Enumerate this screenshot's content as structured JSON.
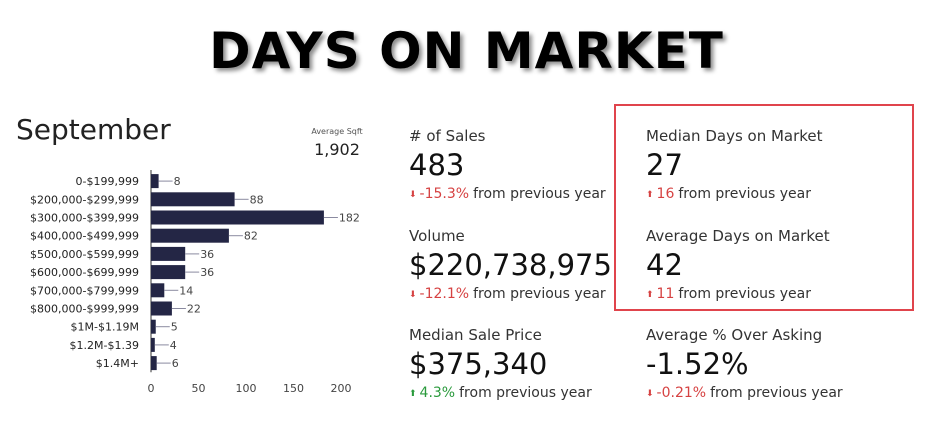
{
  "headline": "DAYS ON MARKET",
  "month": "September",
  "avg_sqft": {
    "label": "Average Sqft",
    "value": "1,902"
  },
  "colors": {
    "bar": "#242645",
    "down": "#d64242",
    "up": "#2a9a3c",
    "highlight": "#e0444c"
  },
  "metrics": {
    "sales": {
      "label": "# of Sales",
      "value": "483",
      "direction": "down",
      "change": "-15.3%",
      "suffix": "from previous year"
    },
    "volume": {
      "label": "Volume",
      "value": "$220,738,975",
      "direction": "down",
      "change": "-12.1%",
      "suffix": "from previous year"
    },
    "median_price": {
      "label": "Median Sale Price",
      "value": "$375,340",
      "direction": "up",
      "change": "4.3%",
      "suffix": "from previous year"
    },
    "median_dom": {
      "label": "Median Days on Market",
      "value": "27",
      "direction": "up",
      "change": "16",
      "suffix": "from previous year"
    },
    "average_dom": {
      "label": "Average Days on Market",
      "value": "42",
      "direction": "up",
      "change": "11",
      "suffix": "from previous year"
    },
    "over_asking": {
      "label": "Average % Over Asking",
      "value": "-1.52%",
      "direction": "down",
      "change": "-0.21%",
      "suffix": "from previous year"
    }
  },
  "chart_data": {
    "type": "bar",
    "orientation": "horizontal",
    "categories": [
      "0-$199,999",
      "$200,000-$299,999",
      "$300,000-$399,999",
      "$400,000-$499,999",
      "$500,000-$599,999",
      "$600,000-$699,999",
      "$700,000-$799,999",
      "$800,000-$999,999",
      "$1M-$1.19M",
      "$1.2M-$1.39",
      "$1.4M+"
    ],
    "values": [
      8,
      88,
      182,
      82,
      36,
      36,
      14,
      22,
      5,
      4,
      6
    ],
    "xlim": [
      0,
      200
    ],
    "xticks": [
      0,
      50,
      100,
      150,
      200
    ],
    "grid": false,
    "data_labels": true
  }
}
